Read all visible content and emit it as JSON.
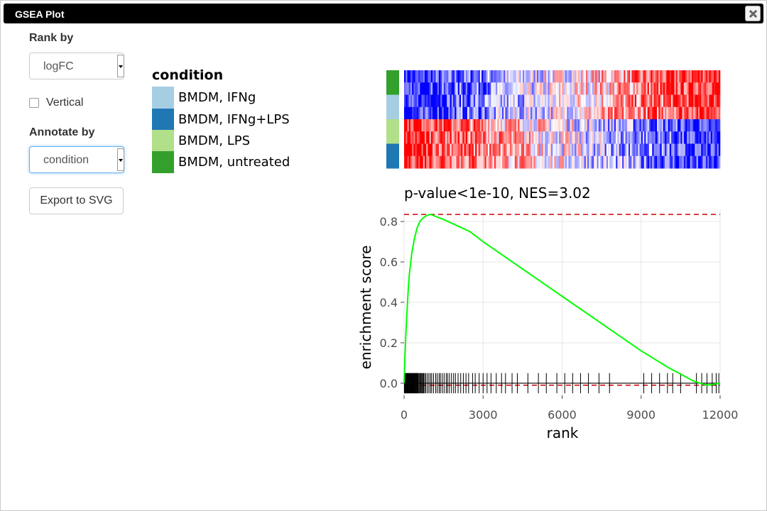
{
  "window": {
    "title": "GSEA Plot"
  },
  "controls": {
    "rank_by_label": "Rank by",
    "rank_by_value": "logFC",
    "vertical_label": "Vertical",
    "vertical_checked": false,
    "annotate_by_label": "Annotate by",
    "annotate_by_value": "condition",
    "export_label": "Export to SVG"
  },
  "legend": {
    "title": "condition",
    "items": [
      {
        "label": "BMDM, IFNg",
        "color": "#a6cee3"
      },
      {
        "label": "BMDM, IFNg+LPS",
        "color": "#1f78b4"
      },
      {
        "label": "BMDM, LPS",
        "color": "#b2df8a"
      },
      {
        "label": "BMDM, untreated",
        "color": "#33a02c"
      }
    ]
  },
  "chart_data": {
    "type": "line",
    "title": "p-value<1e-10, NES=3.02",
    "xlabel": "rank",
    "ylabel": "enrichment score",
    "xlim": [
      0,
      12000
    ],
    "ylim": [
      -0.06,
      0.86
    ],
    "xticks": [
      0,
      3000,
      6000,
      9000,
      12000
    ],
    "xtick_labels": [
      "0",
      "3000",
      "6000",
      "9000",
      "12000"
    ],
    "yticks": [
      0.0,
      0.2,
      0.4,
      0.6,
      0.8
    ],
    "ytick_labels": [
      "0.0",
      "0.2",
      "0.4",
      "0.6",
      "0.8"
    ],
    "grid": true,
    "line_color": "#00ff00",
    "reference_color": "#cc0000",
    "max_es": 0.835,
    "min_es": -0.01,
    "series": [
      {
        "x": [
          0,
          30,
          60,
          100,
          150,
          200,
          300,
          400,
          500,
          600,
          700,
          800,
          900,
          1000,
          1100,
          1300,
          1500,
          2000,
          2500,
          3000,
          4000,
          5000,
          6000,
          7000,
          8000,
          9000,
          10000,
          11000,
          11500,
          12000
        ],
        "y": [
          0.0,
          0.12,
          0.22,
          0.33,
          0.45,
          0.54,
          0.65,
          0.72,
          0.77,
          0.8,
          0.815,
          0.825,
          0.832,
          0.835,
          0.83,
          0.82,
          0.81,
          0.78,
          0.75,
          0.7,
          0.61,
          0.52,
          0.43,
          0.34,
          0.25,
          0.16,
          0.08,
          0.01,
          -0.01,
          0.0
        ]
      }
    ],
    "hit_ranks": [
      10,
      25,
      40,
      55,
      70,
      90,
      110,
      130,
      150,
      170,
      190,
      210,
      230,
      250,
      270,
      290,
      310,
      330,
      350,
      370,
      390,
      410,
      430,
      450,
      470,
      490,
      510,
      530,
      560,
      590,
      620,
      650,
      680,
      710,
      740,
      780,
      820,
      880,
      940,
      1000,
      1050,
      1120,
      1200,
      1260,
      1330,
      1380,
      1450,
      1520,
      1600,
      1650,
      1720,
      1800,
      1880,
      1950,
      2050,
      2150,
      2250,
      2350,
      2450,
      2600,
      2700,
      2850,
      3000,
      3150,
      3300,
      3500,
      3700,
      3850,
      4100,
      4300,
      4700,
      5100,
      5400,
      5800,
      6100,
      6400,
      6700,
      7000,
      7400,
      7800,
      9100,
      9400,
      9700,
      10000,
      10200,
      10500,
      11100,
      11300,
      11500,
      11700,
      11850,
      11950
    ]
  },
  "heatmap": {
    "rows": [
      {
        "group": "BMDM, untreated",
        "direction": -1
      },
      {
        "group": "BMDM, untreated",
        "direction": -1
      },
      {
        "group": "BMDM, IFNg",
        "direction": -1
      },
      {
        "group": "BMDM, IFNg",
        "direction": -1
      },
      {
        "group": "BMDM, LPS",
        "direction": 1
      },
      {
        "group": "BMDM, LPS",
        "direction": 1
      },
      {
        "group": "BMDM, IFNg+LPS",
        "direction": 1
      },
      {
        "group": "BMDM, IFNg+LPS",
        "direction": 1
      }
    ],
    "low_color": "#0000ff",
    "mid_color": "#ffffff",
    "high_color": "#ff0000"
  }
}
